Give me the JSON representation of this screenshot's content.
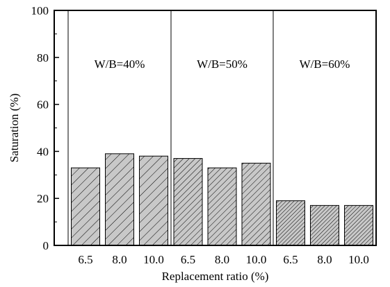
{
  "chart_data": {
    "type": "bar",
    "title": "",
    "xlabel": "Replacement ratio (%)",
    "ylabel": "Saturation (%)",
    "ylim": [
      0,
      100
    ],
    "y_ticks": [
      "0",
      "20",
      "40",
      "60",
      "80",
      "100"
    ],
    "groups": [
      {
        "label": "W/B=40%",
        "categories": [
          "6.5",
          "8.0",
          "10.0"
        ],
        "values": [
          33,
          39,
          38
        ],
        "fill": "#c8c8c8",
        "hatch": "sparse"
      },
      {
        "label": "W/B=50%",
        "categories": [
          "6.5",
          "8.0",
          "10.0"
        ],
        "values": [
          37,
          33,
          35
        ],
        "fill": "#c8c8c8",
        "hatch": "medium"
      },
      {
        "label": "W/B=60%",
        "categories": [
          "6.5",
          "8.0",
          "10.0"
        ],
        "values": [
          19,
          17,
          17
        ],
        "fill": "#c8c8c8",
        "hatch": "dense"
      }
    ],
    "grid": false,
    "legend": "none"
  }
}
